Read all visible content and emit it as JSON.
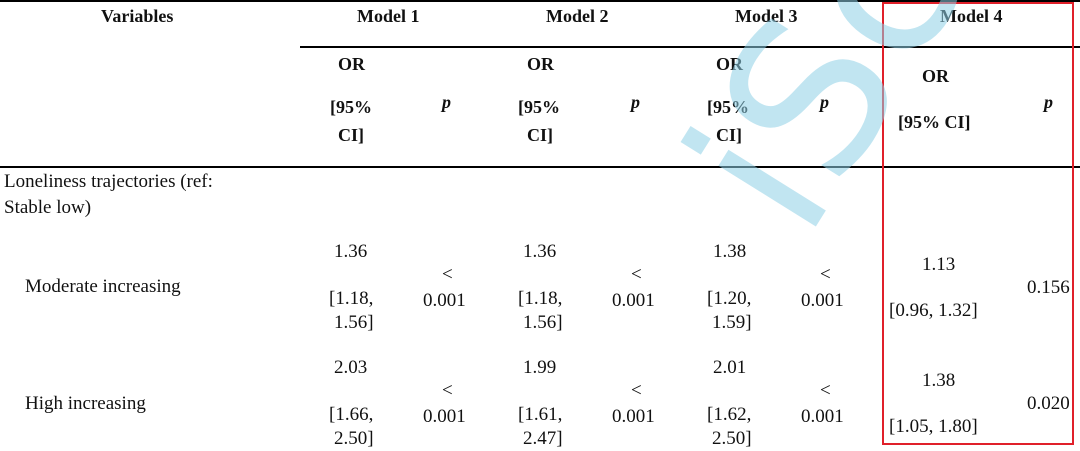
{
  "header": {
    "variables": "Variables",
    "models": [
      "Model 1",
      "Model 2",
      "Model 3",
      "Model 4"
    ],
    "or": "OR",
    "ci_open": "[95%",
    "ci_close": "CI]",
    "ci_full": "[95% CI]",
    "p": "p"
  },
  "section": {
    "line1": "Loneliness trajectories (ref:",
    "line2": "Stable low)"
  },
  "rows": [
    {
      "label": "Moderate increasing",
      "m1": {
        "or": "1.36",
        "ci1": "[1.18,",
        "ci2": "1.56]",
        "p1": "<",
        "p2": "0.001"
      },
      "m2": {
        "or": "1.36",
        "ci1": "[1.18,",
        "ci2": "1.56]",
        "p1": "<",
        "p2": "0.001"
      },
      "m3": {
        "or": "1.38",
        "ci1": "[1.20,",
        "ci2": "1.59]",
        "p1": "<",
        "p2": "0.001"
      },
      "m4": {
        "or": "1.13",
        "ci": "[0.96, 1.32]",
        "p": "0.156"
      }
    },
    {
      "label": "High increasing",
      "m1": {
        "or": "2.03",
        "ci1": "[1.66,",
        "ci2": "2.50]",
        "p1": "<",
        "p2": "0.001"
      },
      "m2": {
        "or": "1.99",
        "ci1": "[1.61,",
        "ci2": "2.47]",
        "p1": "<",
        "p2": "0.001"
      },
      "m3": {
        "or": "2.01",
        "ci1": "[1.62,",
        "ci2": "2.50]",
        "p1": "<",
        "p2": "0.001"
      },
      "m4": {
        "or": "1.38",
        "ci": "[1.05, 1.80]",
        "p": "0.020"
      }
    }
  ],
  "watermark": "iScript",
  "colors": {
    "highlight_box": "#e0202a",
    "watermark": "#8fd0e6"
  }
}
